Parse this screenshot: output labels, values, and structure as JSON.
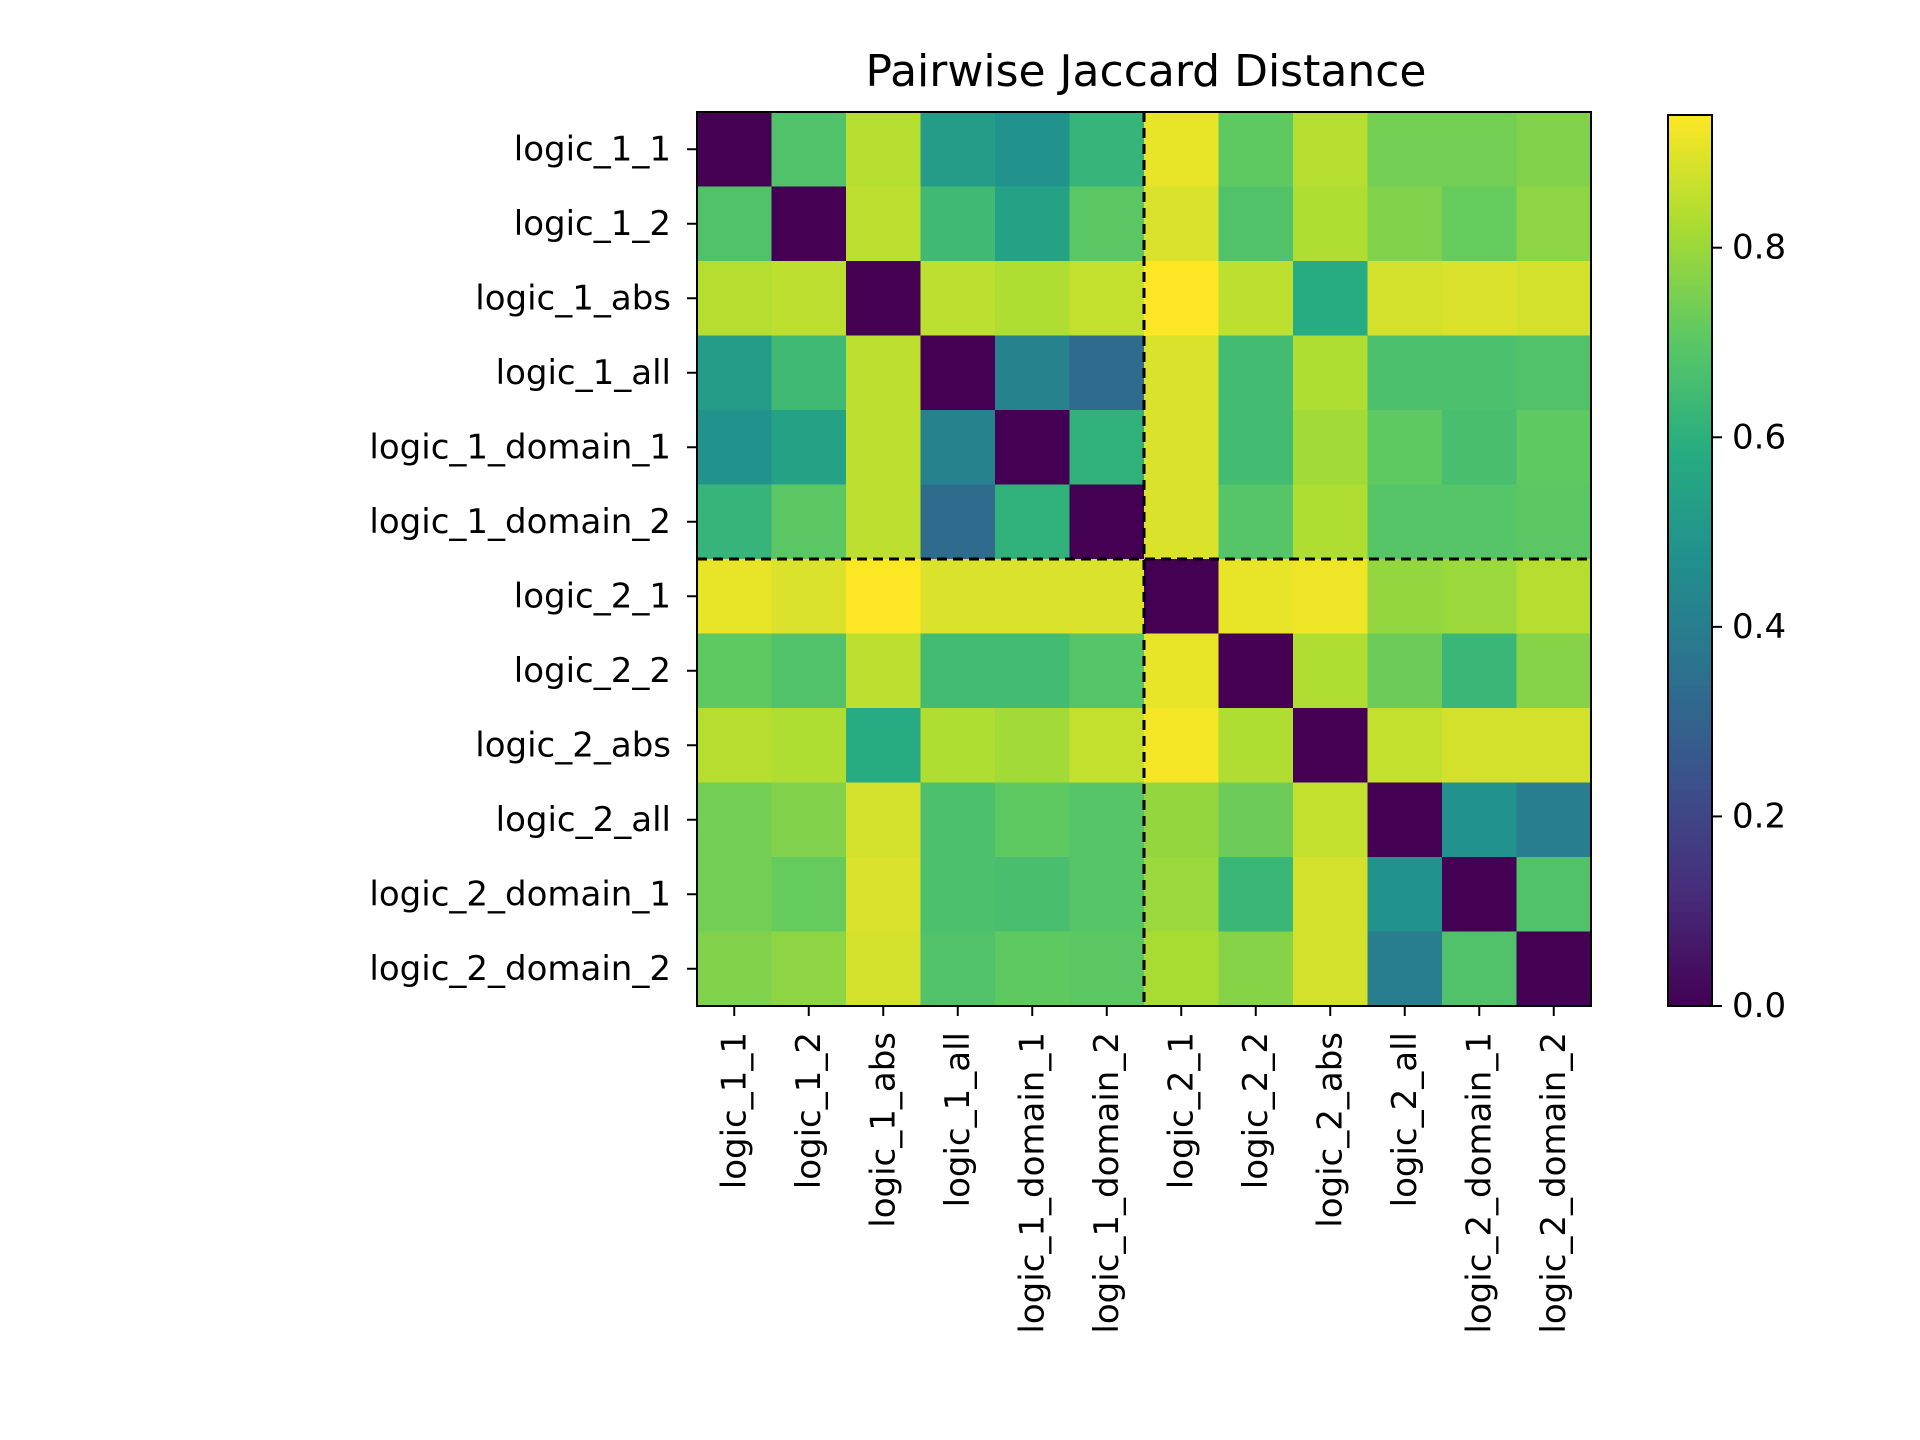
{
  "chart_data": {
    "type": "heatmap",
    "title": "Pairwise Jaccard Distance",
    "xlabel": "",
    "ylabel": "",
    "labels": [
      "logic_1_1",
      "logic_1_2",
      "logic_1_abs",
      "logic_1_all",
      "logic_1_domain_1",
      "logic_1_domain_2",
      "logic_2_1",
      "logic_2_2",
      "logic_2_abs",
      "logic_2_all",
      "logic_2_domain_1",
      "logic_2_domain_2"
    ],
    "matrix": [
      [
        0.0,
        0.68,
        0.84,
        0.52,
        0.48,
        0.62,
        0.91,
        0.71,
        0.84,
        0.74,
        0.74,
        0.76
      ],
      [
        0.68,
        0.0,
        0.85,
        0.64,
        0.54,
        0.7,
        0.89,
        0.68,
        0.83,
        0.76,
        0.72,
        0.78
      ],
      [
        0.84,
        0.85,
        0.0,
        0.85,
        0.83,
        0.86,
        0.94,
        0.85,
        0.58,
        0.88,
        0.89,
        0.88
      ],
      [
        0.52,
        0.64,
        0.85,
        0.0,
        0.42,
        0.33,
        0.89,
        0.65,
        0.83,
        0.67,
        0.67,
        0.68
      ],
      [
        0.48,
        0.54,
        0.85,
        0.42,
        0.0,
        0.61,
        0.89,
        0.65,
        0.81,
        0.71,
        0.66,
        0.71
      ],
      [
        0.62,
        0.7,
        0.85,
        0.33,
        0.61,
        0.0,
        0.89,
        0.69,
        0.83,
        0.69,
        0.69,
        0.7
      ],
      [
        0.91,
        0.89,
        0.94,
        0.89,
        0.89,
        0.89,
        0.0,
        0.91,
        0.92,
        0.79,
        0.8,
        0.84
      ],
      [
        0.71,
        0.68,
        0.85,
        0.65,
        0.65,
        0.69,
        0.91,
        0.0,
        0.83,
        0.73,
        0.63,
        0.77
      ],
      [
        0.84,
        0.83,
        0.58,
        0.83,
        0.81,
        0.86,
        0.93,
        0.83,
        0.0,
        0.86,
        0.88,
        0.88
      ],
      [
        0.74,
        0.76,
        0.88,
        0.67,
        0.71,
        0.69,
        0.79,
        0.73,
        0.86,
        0.0,
        0.48,
        0.4
      ],
      [
        0.74,
        0.72,
        0.89,
        0.67,
        0.66,
        0.69,
        0.8,
        0.63,
        0.88,
        0.48,
        0.0,
        0.68
      ],
      [
        0.76,
        0.78,
        0.88,
        0.68,
        0.71,
        0.7,
        0.82,
        0.77,
        0.88,
        0.4,
        0.68,
        0.0
      ]
    ],
    "colormap": "viridis",
    "vmin": 0.0,
    "vmax": 0.94,
    "colorbar_ticks": [
      "0.0",
      "0.2",
      "0.4",
      "0.6",
      "0.8"
    ],
    "group_divider_after_index": 5,
    "divider_color": "#000000"
  }
}
